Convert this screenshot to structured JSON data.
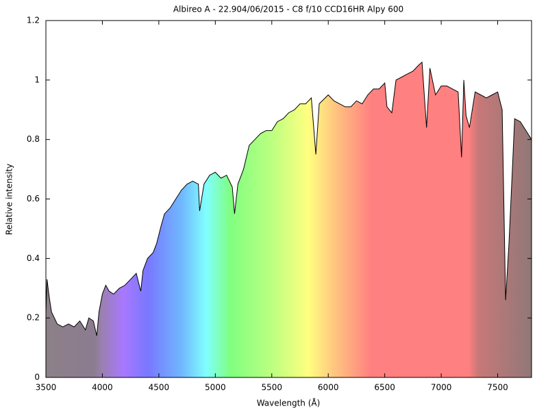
{
  "chart_data": {
    "type": "area",
    "title": "Albireo A - 22.904/06/2015 - C8 f/10 CCD16HR Alpy 600",
    "x_label": "Wavelength (Å)",
    "y_label": "Relative intensity",
    "xlim": [
      3500,
      7800
    ],
    "ylim": [
      0,
      1.2
    ],
    "xticks": [
      3500,
      4000,
      4500,
      5000,
      5500,
      6000,
      6500,
      7000,
      7500
    ],
    "yticks": [
      0,
      0.2,
      0.4,
      0.6,
      0.8,
      1,
      1.2
    ],
    "grid": false,
    "line_color": "#000000",
    "series": [
      {
        "name": "Albireo A",
        "x": [
          3500,
          3510,
          3530,
          3550,
          3600,
          3650,
          3700,
          3750,
          3800,
          3850,
          3880,
          3920,
          3950,
          3970,
          4000,
          4030,
          4060,
          4100,
          4150,
          4200,
          4250,
          4300,
          4340,
          4360,
          4400,
          4450,
          4480,
          4520,
          4550,
          4600,
          4650,
          4700,
          4750,
          4800,
          4850,
          4861,
          4900,
          4950,
          5000,
          5050,
          5100,
          5150,
          5170,
          5200,
          5250,
          5300,
          5350,
          5400,
          5450,
          5500,
          5550,
          5600,
          5650,
          5700,
          5750,
          5800,
          5850,
          5890,
          5920,
          6000,
          6050,
          6100,
          6150,
          6200,
          6250,
          6300,
          6350,
          6400,
          6450,
          6500,
          6520,
          6563,
          6600,
          6650,
          6700,
          6750,
          6800,
          6830,
          6870,
          6900,
          6950,
          7000,
          7050,
          7100,
          7150,
          7180,
          7200,
          7220,
          7250,
          7300,
          7350,
          7400,
          7450,
          7500,
          7540,
          7570,
          7600,
          7630,
          7650,
          7700,
          7750,
          7800
        ],
        "values": [
          0.22,
          0.33,
          0.27,
          0.22,
          0.18,
          0.17,
          0.18,
          0.17,
          0.19,
          0.16,
          0.2,
          0.19,
          0.14,
          0.22,
          0.28,
          0.31,
          0.29,
          0.28,
          0.3,
          0.31,
          0.33,
          0.35,
          0.29,
          0.36,
          0.4,
          0.42,
          0.45,
          0.51,
          0.55,
          0.57,
          0.6,
          0.63,
          0.65,
          0.66,
          0.65,
          0.56,
          0.65,
          0.68,
          0.69,
          0.67,
          0.68,
          0.64,
          0.55,
          0.65,
          0.7,
          0.78,
          0.8,
          0.82,
          0.83,
          0.83,
          0.86,
          0.87,
          0.89,
          0.9,
          0.92,
          0.92,
          0.94,
          0.75,
          0.92,
          0.95,
          0.93,
          0.92,
          0.91,
          0.91,
          0.93,
          0.92,
          0.95,
          0.97,
          0.97,
          0.99,
          0.91,
          0.89,
          1.0,
          1.01,
          1.02,
          1.03,
          1.05,
          1.06,
          0.84,
          1.04,
          0.95,
          0.98,
          0.98,
          0.97,
          0.96,
          0.74,
          1.0,
          0.88,
          0.84,
          0.96,
          0.95,
          0.94,
          0.95,
          0.96,
          0.9,
          0.26,
          0.45,
          0.7,
          0.87,
          0.86,
          0.83,
          0.8
        ]
      }
    ]
  }
}
